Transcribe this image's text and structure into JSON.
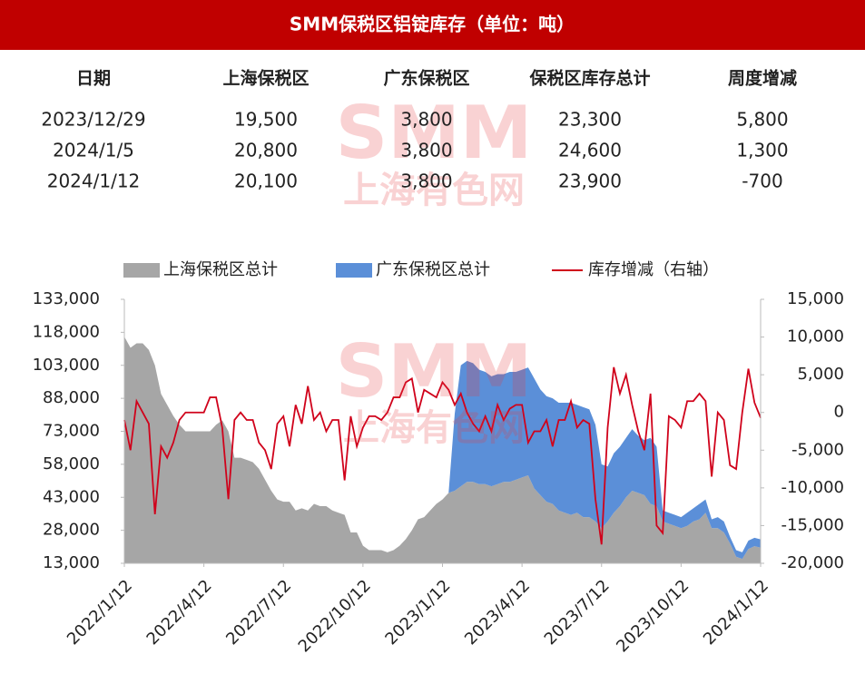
{
  "header": {
    "title": "SMM保税区铝锭库存（单位：吨）"
  },
  "table": {
    "columns": [
      "日期",
      "上海保税区",
      "广东保税区",
      "保税区库存总计",
      "周度增减"
    ],
    "rows": [
      [
        "2023/12/29",
        "19,500",
        "3,800",
        "23,300",
        "5,800"
      ],
      [
        "2024/1/5",
        "20,800",
        "3,800",
        "24,600",
        "1,300"
      ],
      [
        "2024/1/12",
        "20,100",
        "3,800",
        "23,900",
        "-700"
      ]
    ]
  },
  "watermark": {
    "logo": "SMM",
    "text": "上海有色网"
  },
  "chart_data": {
    "type": "area",
    "categories": [
      "2022/1/12",
      null,
      null,
      null,
      null,
      null,
      null,
      null,
      null,
      null,
      null,
      null,
      null,
      "2022/4/12",
      null,
      null,
      null,
      null,
      null,
      null,
      null,
      null,
      null,
      null,
      null,
      null,
      "2022/7/12",
      null,
      null,
      null,
      null,
      null,
      null,
      null,
      null,
      null,
      null,
      null,
      null,
      "2022/10/12",
      null,
      null,
      null,
      null,
      null,
      null,
      null,
      null,
      null,
      null,
      null,
      null,
      "2023/1/12",
      null,
      null,
      null,
      null,
      null,
      null,
      null,
      null,
      null,
      null,
      null,
      null,
      "2023/4/12",
      null,
      null,
      null,
      null,
      null,
      null,
      null,
      null,
      null,
      null,
      null,
      null,
      "2023/7/12",
      null,
      null,
      null,
      null,
      null,
      null,
      null,
      null,
      null,
      null,
      null,
      null,
      "2023/10/12",
      null,
      null,
      null,
      null,
      null,
      null,
      null,
      null,
      null,
      null,
      null,
      null,
      "2024/1/12"
    ],
    "series": [
      {
        "name": "上海保税区总计",
        "color": "#a6a6a6",
        "stacked": true,
        "values": [
          116000,
          111000,
          113000,
          113000,
          110000,
          103000,
          90000,
          85000,
          80000,
          76000,
          73000,
          73000,
          73000,
          73000,
          73000,
          76000,
          78000,
          73000,
          61000,
          61000,
          60000,
          59000,
          56000,
          51000,
          46000,
          42000,
          41000,
          41000,
          37000,
          38000,
          37000,
          40000,
          39000,
          39000,
          37000,
          36000,
          35000,
          27000,
          27000,
          21000,
          19000,
          19000,
          19000,
          18000,
          19000,
          21000,
          24000,
          28000,
          33000,
          34000,
          37000,
          40000,
          42000,
          45000,
          46000,
          48000,
          50000,
          50000,
          49000,
          49000,
          48000,
          49000,
          50000,
          50000,
          51000,
          52000,
          53000,
          47000,
          44000,
          41000,
          40000,
          37000,
          36000,
          35000,
          36000,
          34000,
          34000,
          32000,
          29000,
          32000,
          36000,
          39000,
          43000,
          46000,
          45000,
          44000,
          40000,
          39000,
          32000,
          31000,
          30000,
          29000,
          30000,
          32000,
          33000,
          36000,
          29000,
          29000,
          27000,
          22000,
          16000,
          15000,
          19500,
          20800,
          20100
        ]
      },
      {
        "name": "广东保税区总计",
        "color": "#5b8fd8",
        "stacked": true,
        "values": [
          0,
          0,
          0,
          0,
          0,
          0,
          0,
          0,
          0,
          0,
          0,
          0,
          0,
          0,
          0,
          0,
          0,
          0,
          0,
          0,
          0,
          0,
          0,
          0,
          0,
          0,
          0,
          0,
          0,
          0,
          0,
          0,
          0,
          0,
          0,
          0,
          0,
          0,
          0,
          0,
          0,
          0,
          0,
          0,
          0,
          0,
          0,
          0,
          0,
          0,
          0,
          0,
          0,
          0,
          35000,
          55000,
          55000,
          54000,
          52000,
          51000,
          50000,
          50000,
          49000,
          50000,
          49000,
          49000,
          49000,
          50000,
          48000,
          48000,
          48000,
          49000,
          50000,
          51000,
          49000,
          50000,
          49000,
          44000,
          29000,
          25000,
          27000,
          27000,
          27000,
          28000,
          26000,
          25000,
          30000,
          27000,
          5000,
          5000,
          5000,
          5000,
          6000,
          6000,
          7000,
          6000,
          4000,
          5000,
          5000,
          3000,
          3000,
          3000,
          3800,
          3800,
          3800
        ]
      },
      {
        "name": "库存增减（右轴）",
        "color": "#d0021b",
        "axis": "y2",
        "values": [
          -1000,
          -5000,
          1500,
          0,
          -1500,
          -13500,
          -4500,
          -6000,
          -4000,
          -1000,
          0,
          0,
          0,
          0,
          2000,
          2000,
          -2000,
          -11500,
          -1000,
          0,
          -1000,
          -1000,
          -4000,
          -5000,
          -7500,
          -1500,
          -500,
          -4500,
          1000,
          -1500,
          3500,
          -1000,
          0,
          -2500,
          -1000,
          -1000,
          -9000,
          -500,
          -4500,
          -2000,
          -500,
          -500,
          -1000,
          0,
          2000,
          2000,
          4000,
          4500,
          0,
          3000,
          2500,
          2000,
          4000,
          3000,
          1000,
          2500,
          0,
          -1500,
          -2500,
          -500,
          -2500,
          1000,
          -1000,
          500,
          1000,
          1000,
          -4000,
          -2500,
          -2500,
          -1000,
          -4500,
          -1000,
          -1000,
          1500,
          -2000,
          -1000,
          -1500,
          -11500,
          -17500,
          -2000,
          6000,
          2500,
          5000,
          1000,
          -2500,
          -5000,
          2500,
          -15000,
          -16000,
          -500,
          -1000,
          -2000,
          1500,
          1500,
          2500,
          1500,
          -8500,
          0,
          -1000,
          -7000,
          -7500,
          0,
          5800,
          1300,
          -700
        ]
      }
    ],
    "ylim": [
      13000,
      133000
    ],
    "yticks": [
      {
        "value": 13000,
        "label": "13,000"
      },
      {
        "value": 28000,
        "label": "28,000"
      },
      {
        "value": 43000,
        "label": "43,000"
      },
      {
        "value": 58000,
        "label": "58,000"
      },
      {
        "value": 73000,
        "label": "73,000"
      },
      {
        "value": 88000,
        "label": "88,000"
      },
      {
        "value": 103000,
        "label": "103,000"
      },
      {
        "value": 118000,
        "label": "118,000"
      },
      {
        "value": 133000,
        "label": "133,000"
      }
    ],
    "y2lim": [
      -20000,
      15000
    ],
    "y2ticks": [
      {
        "value": -20000,
        "label": "-20,000"
      },
      {
        "value": -15000,
        "label": "-15,000"
      },
      {
        "value": -10000,
        "label": "-10,000"
      },
      {
        "value": -5000,
        "label": "-5,000"
      },
      0,
      {
        "value": 5000,
        "label": "5,000"
      },
      {
        "value": 10000,
        "label": "10,000"
      },
      {
        "value": 15000,
        "label": "15,000"
      }
    ],
    "grid": false,
    "legend": "top"
  }
}
